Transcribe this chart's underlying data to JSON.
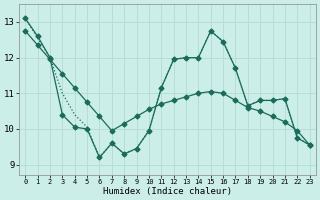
{
  "xlabel": "Humidex (Indice chaleur)",
  "background_color": "#cceee8",
  "grid_color": "#b8ddd8",
  "line_color": "#1a6b5a",
  "x_ticks": [
    0,
    1,
    2,
    3,
    4,
    5,
    6,
    7,
    8,
    9,
    10,
    11,
    12,
    13,
    14,
    15,
    16,
    17,
    18,
    19,
    20,
    21,
    22,
    23
  ],
  "y_ticks": [
    9,
    10,
    11,
    12,
    13
  ],
  "xlim": [
    -0.5,
    23.5
  ],
  "ylim": [
    8.7,
    13.5
  ],
  "series1_x": [
    0,
    1,
    2,
    3,
    4,
    5,
    6,
    7,
    8,
    9,
    10,
    11,
    12,
    13,
    14,
    15,
    16,
    17,
    18,
    19,
    20,
    21,
    22,
    23
  ],
  "series1_y": [
    13.1,
    12.6,
    12.0,
    10.4,
    10.05,
    10.0,
    9.2,
    9.6,
    9.3,
    9.45,
    9.95,
    11.15,
    11.95,
    12.0,
    12.0,
    12.75,
    12.45,
    11.7,
    10.65,
    10.8,
    10.8,
    10.85,
    9.75,
    9.55
  ],
  "series2_x": [
    0,
    1,
    2,
    3,
    4,
    5,
    6,
    7,
    8,
    9,
    10,
    11,
    12,
    13,
    14,
    15,
    16,
    17,
    18,
    19,
    20,
    21,
    22,
    23
  ],
  "series2_y": [
    12.75,
    12.35,
    11.95,
    11.55,
    11.15,
    10.75,
    10.35,
    9.95,
    10.15,
    10.35,
    10.55,
    10.7,
    10.8,
    10.9,
    11.0,
    11.05,
    11.0,
    10.8,
    10.6,
    10.5,
    10.35,
    10.2,
    9.95,
    9.55
  ],
  "series3_x": [
    0,
    2,
    3,
    4,
    5,
    6,
    7,
    8,
    9,
    10,
    11,
    12,
    13,
    14,
    15,
    16,
    17,
    18,
    19,
    20,
    21,
    22,
    23
  ],
  "series3_y": [
    13.1,
    12.0,
    11.0,
    10.4,
    10.05,
    9.2,
    9.6,
    9.3,
    9.45,
    9.95,
    11.15,
    11.95,
    12.0,
    12.0,
    12.75,
    12.45,
    11.7,
    10.65,
    10.8,
    10.8,
    10.85,
    9.75,
    9.55
  ]
}
